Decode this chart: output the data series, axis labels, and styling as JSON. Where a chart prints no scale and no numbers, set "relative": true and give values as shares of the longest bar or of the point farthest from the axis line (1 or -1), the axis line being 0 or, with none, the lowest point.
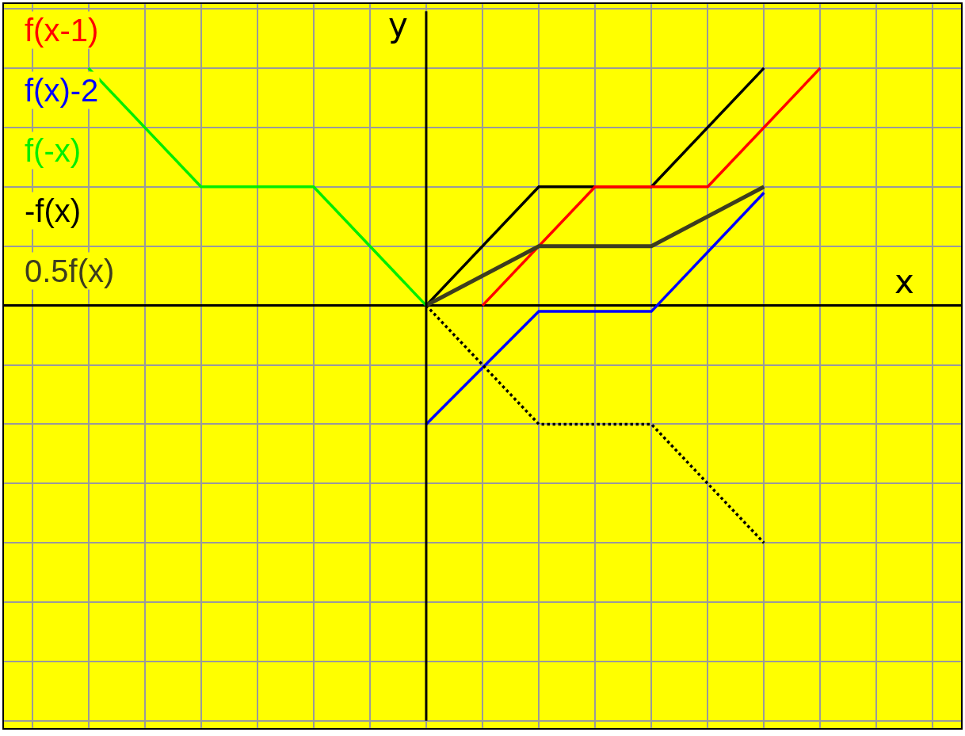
{
  "chart_data": {
    "type": "line",
    "relative": true,
    "xlabel": "x",
    "ylabel": "y",
    "grid": true,
    "legend": "top left",
    "marker": "none",
    "categories": [
      null,
      null,
      null,
      null,
      null,
      null,
      null,
      null,
      null,
      null,
      null,
      null,
      null,
      null,
      null,
      null,
      null
    ],
    "series": [
      {
        "color": "#000000",
        "line_style": "solid",
        "values": [
          null,
          null,
          null,
          null,
          null,
          null,
          null,
          0,
          null,
          0.5,
          null,
          0.5,
          null,
          1,
          null,
          null,
          null
        ]
      },
      {
        "name": "f(x-1)",
        "color": "#ff0000",
        "line_style": "solid",
        "values": [
          null,
          null,
          null,
          null,
          null,
          null,
          null,
          null,
          0,
          null,
          0.5,
          null,
          0.5,
          null,
          1,
          null,
          null
        ]
      },
      {
        "name": "f(x)-2",
        "color": "#0000ff",
        "line_style": "solid",
        "values": [
          null,
          null,
          null,
          null,
          null,
          null,
          null,
          -0.5,
          null,
          -0.025,
          null,
          -0.025,
          null,
          0.475,
          null,
          null,
          null
        ]
      },
      {
        "name": "f(-x)",
        "color": "#00ee00",
        "line_style": "solid",
        "values": [
          null,
          1,
          null,
          0.5,
          null,
          0.5,
          null,
          0,
          null,
          null,
          null,
          null,
          null,
          null,
          null,
          null,
          null
        ]
      },
      {
        "name": "-f(x)",
        "color": "#000000",
        "line_style": "dotted",
        "values": [
          null,
          null,
          null,
          null,
          null,
          null,
          null,
          0,
          null,
          -0.5,
          null,
          -0.5,
          null,
          -1,
          null,
          null,
          null
        ]
      },
      {
        "name": "0.5f(x)",
        "color": "#3d3d1f",
        "line_style": "solid",
        "values": [
          null,
          null,
          null,
          null,
          null,
          null,
          null,
          0,
          null,
          0.25,
          null,
          0.25,
          null,
          0.5,
          null,
          null,
          null
        ]
      }
    ]
  }
}
